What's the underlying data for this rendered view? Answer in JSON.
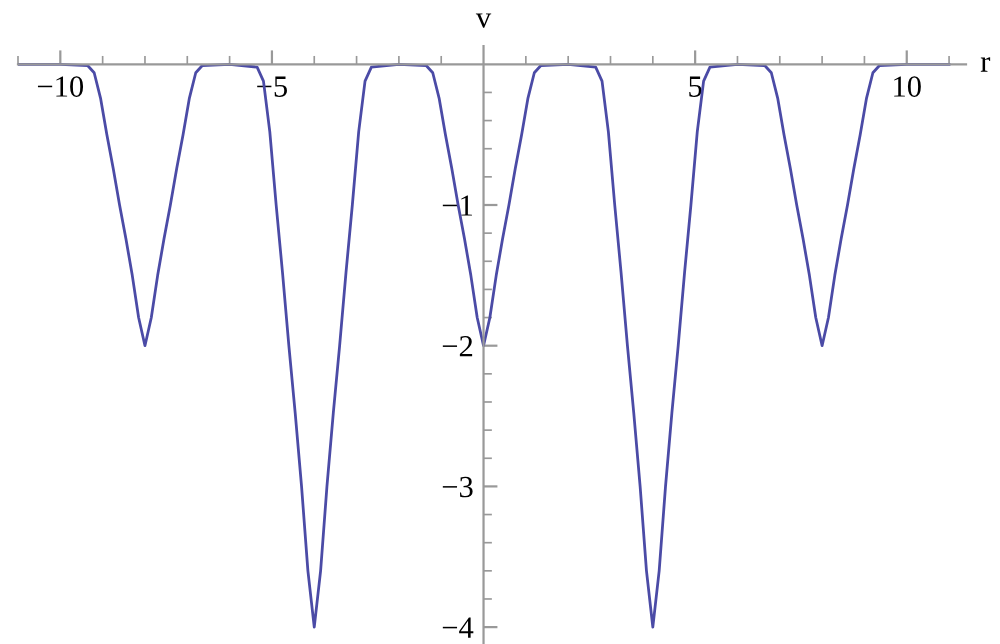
{
  "chart_data": {
    "type": "line",
    "xlabel": "r",
    "ylabel": "v",
    "xlim": [
      -11,
      11.4
    ],
    "ylim": [
      -4.12,
      0.13
    ],
    "xticks": [
      -10,
      -5,
      5,
      10,
      {
        "value": -11,
        "label": null
      },
      {
        "value": -9,
        "label": null
      },
      {
        "value": -8,
        "label": null
      },
      {
        "value": -7,
        "label": null
      },
      {
        "value": -6,
        "label": null
      },
      {
        "value": -4,
        "label": null
      },
      {
        "value": -3,
        "label": null
      },
      {
        "value": -2,
        "label": null
      },
      {
        "value": -1,
        "label": null
      },
      {
        "value": 1,
        "label": null
      },
      {
        "value": 2,
        "label": null
      },
      {
        "value": 3,
        "label": null
      },
      {
        "value": 4,
        "label": null
      },
      {
        "value": 6,
        "label": null
      },
      {
        "value": 7,
        "label": null
      },
      {
        "value": 8,
        "label": null
      },
      {
        "value": 9,
        "label": null
      },
      {
        "value": 11,
        "label": null
      }
    ],
    "yticks": [
      -1,
      -2,
      -3,
      -4,
      {
        "value": -0.2,
        "label": null
      },
      {
        "value": -0.4,
        "label": null
      },
      {
        "value": -0.6,
        "label": null
      },
      {
        "value": -0.8,
        "label": null
      },
      {
        "value": -1.2,
        "label": null
      },
      {
        "value": -1.4,
        "label": null
      },
      {
        "value": -1.6,
        "label": null
      },
      {
        "value": -1.8,
        "label": null
      },
      {
        "value": -2.2,
        "label": null
      },
      {
        "value": -2.4,
        "label": null
      },
      {
        "value": -2.6,
        "label": null
      },
      {
        "value": -2.8,
        "label": null
      },
      {
        "value": -3.2,
        "label": null
      },
      {
        "value": -3.4,
        "label": null
      },
      {
        "value": -3.6,
        "label": null
      },
      {
        "value": -3.8,
        "label": null
      }
    ],
    "grid": false,
    "legend": false,
    "marker": "none",
    "line_style": "solid",
    "series": [
      {
        "color": "#4b4ba6",
        "x": [
          -11,
          -10,
          -9.35,
          -9.2,
          -9.05,
          -8.9,
          -8.75,
          -8.6,
          -8.45,
          -8.3,
          -8.15,
          -8,
          -7.85,
          -7.7,
          -7.55,
          -7.4,
          -7.25,
          -7.1,
          -6.95,
          -6.8,
          -6.65,
          -6,
          -5.35,
          -5.2,
          -5.05,
          -4.9,
          -4.75,
          -4.6,
          -4.45,
          -4.3,
          -4.15,
          -4,
          -3.85,
          -3.7,
          -3.55,
          -3.4,
          -3.25,
          -3.1,
          -2.95,
          -2.8,
          -2.65,
          -2,
          -1.35,
          -1.2,
          -1.05,
          -0.9,
          -0.75,
          -0.6,
          -0.45,
          -0.3,
          -0.15,
          0,
          0.15,
          0.3,
          0.45,
          0.6,
          0.75,
          0.9,
          1.05,
          1.2,
          1.35,
          2,
          2.65,
          2.8,
          2.95,
          3.1,
          3.25,
          3.4,
          3.55,
          3.7,
          3.85,
          4,
          4.15,
          4.3,
          4.45,
          4.6,
          4.75,
          4.9,
          5.05,
          5.2,
          5.35,
          6,
          6.65,
          6.8,
          6.95,
          7.1,
          7.25,
          7.4,
          7.55,
          7.7,
          7.85,
          8,
          8.15,
          8.3,
          8.45,
          8.6,
          8.75,
          8.9,
          9.05,
          9.2,
          9.35,
          10,
          11
        ],
        "values": [
          0,
          0,
          -0.01,
          -0.06,
          -0.24,
          -0.5,
          -0.74,
          -1,
          -1.24,
          -1.5,
          -1.8,
          -2,
          -1.8,
          -1.5,
          -1.24,
          -1,
          -0.74,
          -0.5,
          -0.24,
          -0.06,
          -0.01,
          0,
          -0.02,
          -0.12,
          -0.48,
          -1,
          -1.48,
          -2,
          -2.48,
          -3,
          -3.6,
          -4,
          -3.6,
          -3,
          -2.48,
          -2,
          -1.48,
          -1,
          -0.48,
          -0.12,
          -0.02,
          0,
          -0.01,
          -0.06,
          -0.24,
          -0.5,
          -0.74,
          -1,
          -1.24,
          -1.5,
          -1.8,
          -2,
          -1.8,
          -1.5,
          -1.24,
          -1,
          -0.74,
          -0.5,
          -0.24,
          -0.06,
          -0.01,
          0,
          -0.02,
          -0.12,
          -0.48,
          -1,
          -1.48,
          -2,
          -2.48,
          -3,
          -3.6,
          -4,
          -3.6,
          -3,
          -2.48,
          -2,
          -1.48,
          -1,
          -0.48,
          -0.12,
          -0.02,
          0,
          -0.01,
          -0.06,
          -0.24,
          -0.5,
          -0.74,
          -1,
          -1.24,
          -1.5,
          -1.8,
          -2,
          -1.8,
          -1.5,
          -1.24,
          -1,
          -0.74,
          -0.5,
          -0.24,
          -0.06,
          -0.01,
          0,
          0
        ]
      }
    ]
  }
}
